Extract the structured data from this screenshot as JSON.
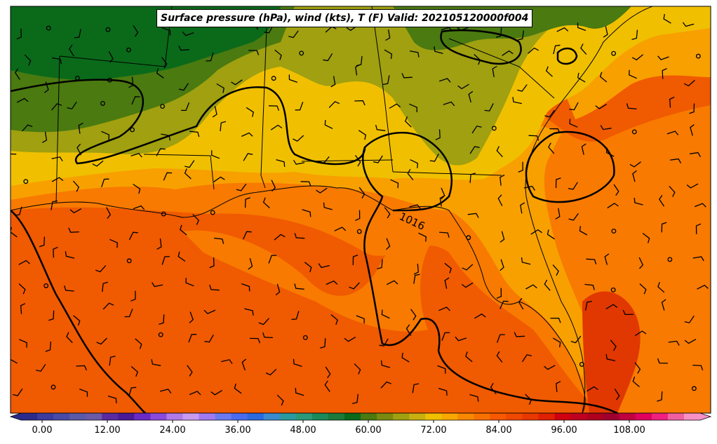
{
  "title": "Surface pressure (hPa), wind (kts), T (F) Valid: 202105120000f004",
  "colorbar": {
    "tick_labels": [
      "0.00",
      "12.00",
      "24.00",
      "36.00",
      "48.00",
      "60.00",
      "72.00",
      "84.00",
      "96.00",
      "108.00"
    ],
    "colors": [
      "#2b2b8c",
      "#3b3ba0",
      "#4a4aa8",
      "#5a5aa8",
      "#6a5aa8",
      "#5a2aa0",
      "#4a1a98",
      "#6a2ac8",
      "#8a4ae0",
      "#b07ae8",
      "#c89af0",
      "#a07af0",
      "#6a7af0",
      "#4a6af0",
      "#2a6ae0",
      "#3a8ad0",
      "#2a9aa0",
      "#2a9a7a",
      "#1a8a5a",
      "#1a7a3a",
      "#0a6a1a",
      "#4a7a10",
      "#7a8a10",
      "#a0a010",
      "#c8b010",
      "#f0c000",
      "#f8a800",
      "#f88800",
      "#f87000",
      "#f85800",
      "#f04800",
      "#e83800",
      "#e02000",
      "#d00010",
      "#c00020",
      "#b00020",
      "#a00030",
      "#c00040",
      "#e00060",
      "#f02080",
      "#f060a0",
      "#f890c8"
    ]
  },
  "contour_label": "1016",
  "colors": {
    "hot": "#f05000",
    "warm": "#f87800",
    "orange": "#f8a000",
    "yellow": "#f0c000",
    "olive": "#a0a010",
    "green": "#4a7a10",
    "dark_green": "#0a6a1a"
  }
}
